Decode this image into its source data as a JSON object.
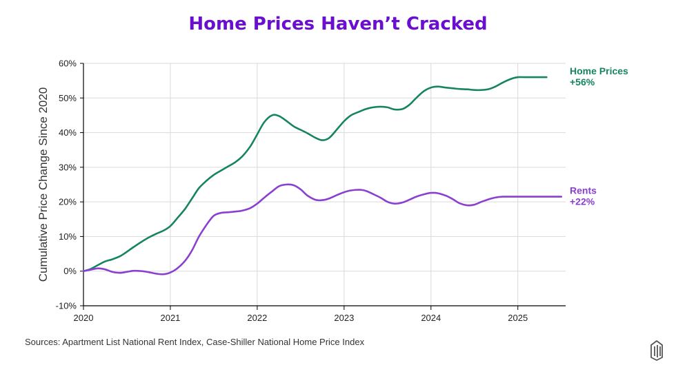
{
  "chart_data": {
    "type": "line",
    "title": "Home Prices Haven’t Cracked",
    "ylabel": "Cumulative Price Change Since 2020",
    "xlabel": "",
    "source": "Sources: Apartment List National Rent Index, Case-Shiller National Home Price Index",
    "xlim": [
      2020,
      2025.55
    ],
    "ylim": [
      -10,
      60
    ],
    "x_ticks": [
      2020,
      2021,
      2022,
      2023,
      2024,
      2025
    ],
    "x_tick_labels": [
      "2020",
      "2021",
      "2022",
      "2023",
      "2024",
      "2025"
    ],
    "y_ticks": [
      -10,
      0,
      10,
      20,
      30,
      40,
      50,
      60
    ],
    "y_tick_labels": [
      "-10%",
      "0%",
      "10%",
      "20%",
      "30%",
      "40%",
      "50%",
      "60%"
    ],
    "grid": "vertical lines at years, horizontal lines at y ticks",
    "series": [
      {
        "name": "Home Prices",
        "end_label": [
          "Home Prices",
          "+56%"
        ],
        "color": "#15845f",
        "x": [
          2020.0,
          2020.08,
          2020.17,
          2020.25,
          2020.33,
          2020.42,
          2020.5,
          2020.58,
          2020.67,
          2020.75,
          2020.83,
          2020.92,
          2021.0,
          2021.08,
          2021.17,
          2021.25,
          2021.33,
          2021.42,
          2021.5,
          2021.58,
          2021.67,
          2021.75,
          2021.83,
          2021.92,
          2022.0,
          2022.08,
          2022.17,
          2022.25,
          2022.33,
          2022.42,
          2022.5,
          2022.58,
          2022.67,
          2022.75,
          2022.83,
          2022.92,
          2023.0,
          2023.08,
          2023.17,
          2023.25,
          2023.33,
          2023.42,
          2023.5,
          2023.58,
          2023.67,
          2023.75,
          2023.83,
          2023.92,
          2024.0,
          2024.08,
          2024.17,
          2024.25,
          2024.33,
          2024.42,
          2024.5,
          2024.58,
          2024.67,
          2024.75,
          2024.83,
          2024.92,
          2025.0,
          2025.08,
          2025.17,
          2025.25,
          2025.33
        ],
        "values": [
          0,
          0.6,
          1.8,
          2.8,
          3.4,
          4.3,
          5.6,
          7.0,
          8.5,
          9.7,
          10.7,
          11.7,
          13.0,
          15.3,
          18.0,
          21.0,
          24.0,
          26.2,
          27.8,
          29.0,
          30.3,
          31.5,
          33.2,
          36.0,
          39.5,
          43.0,
          45.0,
          44.8,
          43.5,
          41.8,
          40.8,
          39.8,
          38.5,
          37.8,
          38.5,
          41.0,
          43.3,
          45.0,
          46.0,
          46.8,
          47.3,
          47.5,
          47.3,
          46.7,
          46.8,
          48.0,
          50.0,
          52.0,
          53.0,
          53.3,
          53.0,
          52.8,
          52.6,
          52.5,
          52.3,
          52.3,
          52.6,
          53.4,
          54.5,
          55.5,
          56.0,
          56.0,
          56.0,
          56.0,
          56.0
        ]
      },
      {
        "name": "Rents",
        "end_label": [
          "Rents",
          "+22%"
        ],
        "color": "#8a3fd1",
        "x": [
          2020.0,
          2020.08,
          2020.17,
          2020.25,
          2020.33,
          2020.42,
          2020.5,
          2020.58,
          2020.67,
          2020.75,
          2020.83,
          2020.92,
          2021.0,
          2021.08,
          2021.17,
          2021.25,
          2021.33,
          2021.42,
          2021.5,
          2021.58,
          2021.67,
          2021.75,
          2021.83,
          2021.92,
          2022.0,
          2022.08,
          2022.17,
          2022.25,
          2022.33,
          2022.42,
          2022.5,
          2022.58,
          2022.67,
          2022.75,
          2022.83,
          2022.92,
          2023.0,
          2023.08,
          2023.17,
          2023.25,
          2023.33,
          2023.42,
          2023.5,
          2023.58,
          2023.67,
          2023.75,
          2023.83,
          2023.92,
          2024.0,
          2024.08,
          2024.17,
          2024.25,
          2024.33,
          2024.42,
          2024.5,
          2024.58,
          2024.67,
          2024.75,
          2024.83,
          2024.92,
          2025.0,
          2025.08,
          2025.17,
          2025.25,
          2025.33,
          2025.42,
          2025.5
        ],
        "values": [
          0,
          0.4,
          0.8,
          0.5,
          -0.2,
          -0.5,
          -0.2,
          0.1,
          0.0,
          -0.3,
          -0.7,
          -0.9,
          -0.4,
          0.8,
          3.0,
          6.0,
          10.0,
          13.5,
          16.0,
          16.8,
          17.0,
          17.2,
          17.5,
          18.2,
          19.5,
          21.2,
          23.0,
          24.5,
          25.0,
          24.8,
          23.6,
          21.8,
          20.6,
          20.5,
          21.0,
          22.0,
          22.8,
          23.3,
          23.5,
          23.2,
          22.3,
          21.2,
          20.0,
          19.5,
          19.8,
          20.6,
          21.5,
          22.2,
          22.6,
          22.5,
          21.8,
          20.8,
          19.6,
          19.0,
          19.2,
          20.0,
          20.8,
          21.3,
          21.5,
          21.5,
          21.5,
          21.5,
          21.5,
          21.5,
          21.5,
          21.5,
          21.5
        ]
      }
    ]
  },
  "colors": {
    "title": "#6a0fd0",
    "home_prices": "#15845f",
    "rents": "#8a3fd1",
    "logo": "#555555"
  },
  "logo_icon": "apartment-list-logo-icon"
}
